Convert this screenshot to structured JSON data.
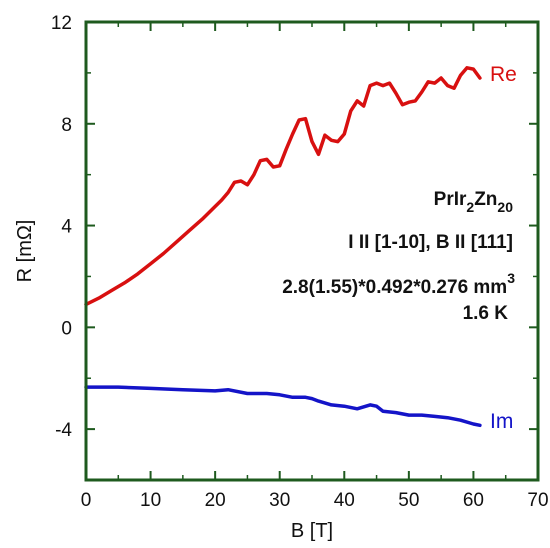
{
  "chart_data": {
    "type": "line",
    "xlabel": "B [T]",
    "ylabel": "R [mΩ]",
    "xlim": [
      0,
      70
    ],
    "ylim": [
      -6,
      12
    ],
    "x_ticks": [
      0,
      10,
      20,
      30,
      40,
      50,
      60,
      70
    ],
    "y_ticks": [
      -4,
      0,
      4,
      8,
      12
    ],
    "grid": false,
    "colors": {
      "frame": "#1e5a1e",
      "tick": "#1e5a1e"
    },
    "series": [
      {
        "name": "Re",
        "color": "#d81010",
        "x": [
          0,
          2,
          4,
          6,
          8,
          10,
          12,
          14,
          16,
          18,
          20,
          21,
          22,
          23,
          24,
          25,
          26,
          27,
          28,
          29,
          30,
          31,
          32,
          33,
          34,
          35,
          36,
          37,
          38,
          39,
          40,
          41,
          42,
          43,
          44,
          45,
          46,
          47,
          48,
          49,
          50,
          51,
          52,
          53,
          54,
          55,
          56,
          57,
          58,
          59,
          60,
          61
        ],
        "y": [
          0.9,
          1.15,
          1.45,
          1.75,
          2.1,
          2.5,
          2.9,
          3.35,
          3.8,
          4.25,
          4.75,
          5.0,
          5.3,
          5.7,
          5.75,
          5.6,
          6.0,
          6.55,
          6.6,
          6.3,
          6.35,
          7.0,
          7.6,
          8.15,
          8.2,
          7.3,
          6.8,
          7.55,
          7.35,
          7.3,
          7.6,
          8.5,
          8.9,
          8.7,
          9.5,
          9.6,
          9.5,
          9.6,
          9.2,
          8.75,
          8.85,
          8.9,
          9.25,
          9.65,
          9.6,
          9.8,
          9.5,
          9.4,
          9.9,
          10.2,
          10.15,
          9.8
        ]
      },
      {
        "name": "Im",
        "color": "#1414c8",
        "x": [
          0,
          5,
          10,
          15,
          20,
          22,
          25,
          28,
          30,
          32,
          34,
          35,
          36,
          38,
          40,
          42,
          44,
          45,
          46,
          48,
          50,
          52,
          54,
          56,
          58,
          60,
          61
        ],
        "y": [
          -2.35,
          -2.35,
          -2.4,
          -2.45,
          -2.5,
          -2.45,
          -2.6,
          -2.6,
          -2.65,
          -2.75,
          -2.75,
          -2.8,
          -2.9,
          -3.05,
          -3.1,
          -3.2,
          -3.05,
          -3.1,
          -3.3,
          -3.35,
          -3.45,
          -3.45,
          -3.5,
          -3.55,
          -3.65,
          -3.8,
          -3.85
        ]
      }
    ],
    "annotations": {
      "line1_main": "PrIr",
      "line1_sub1": "2",
      "line1_mid": "Zn",
      "line1_sub2": "20",
      "line2": "I II [1-10], B II [111]",
      "line3_main": "2.8(1.55)*0.492*0.276 mm",
      "line3_sup": "3",
      "line4": "1.6 K"
    }
  }
}
